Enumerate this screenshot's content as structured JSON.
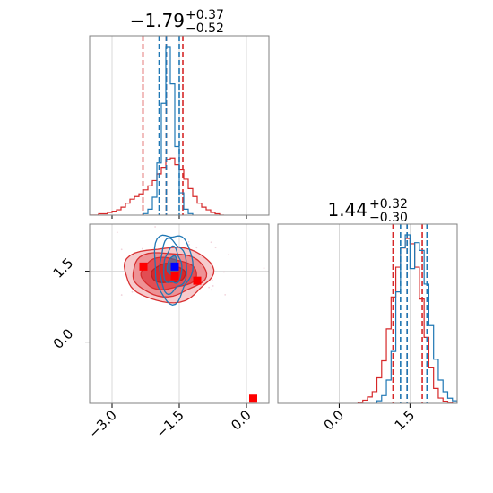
{
  "chart_data": {
    "type": "corner",
    "parameters": [
      {
        "title": {
          "value": "−1.79",
          "upper": "+0.37",
          "lower": "−0.52"
        },
        "range": [
          -3.5,
          0.5
        ],
        "ticks": [
          {
            "value": -3.0,
            "label": "−3.0"
          },
          {
            "value": -1.5,
            "label": "−1.5"
          },
          {
            "value": 0.0,
            "label": "0.0"
          }
        ]
      },
      {
        "title": {
          "value": "1.44",
          "upper": "+0.32",
          "lower": "−0.30"
        },
        "range": [
          -1.3,
          2.5
        ],
        "ticks": [
          {
            "value": 0.0,
            "label": "0.0"
          },
          {
            "value": 1.5,
            "label": "1.5"
          }
        ]
      }
    ],
    "y_ticks_2d": [
      {
        "value": 0.0,
        "label": "0.0"
      },
      {
        "value": 1.5,
        "label": "1.5"
      }
    ],
    "series": [
      {
        "name": "",
        "color": "#d62728",
        "x_hist": {
          "bin_edges": [
            -3.5,
            -3.4,
            -3.3,
            -3.2,
            -3.1,
            -3.0,
            -2.9,
            -2.8,
            -2.7,
            -2.6,
            -2.5,
            -2.4,
            -2.3,
            -2.2,
            -2.1,
            -2.0,
            -1.9,
            -1.8,
            -1.7,
            -1.6,
            -1.5,
            -1.4,
            -1.3,
            -1.2,
            -1.1,
            -1.0,
            -0.9,
            -0.8,
            -0.7,
            -0.6,
            -0.5
          ],
          "counts": [
            0,
            0,
            1,
            1,
            2,
            3,
            4,
            6,
            9,
            12,
            14,
            16,
            19,
            22,
            26,
            31,
            36,
            42,
            43,
            38,
            34,
            27,
            20,
            14,
            9,
            6,
            4,
            2,
            1,
            0
          ]
        },
        "y_hist": {
          "bin_edges": [
            0.4,
            0.5,
            0.6,
            0.7,
            0.8,
            0.9,
            1.0,
            1.1,
            1.2,
            1.3,
            1.4,
            1.5,
            1.6,
            1.7,
            1.8,
            1.9,
            2.0,
            2.1,
            2.2,
            2.3,
            2.4
          ],
          "counts": [
            1,
            3,
            6,
            11,
            24,
            40,
            70,
            100,
            128,
            146,
            155,
            150,
            128,
            98,
            62,
            34,
            14,
            5,
            2,
            1
          ]
        },
        "x_quantiles": [
          -2.31,
          -1.79,
          -1.42
        ],
        "y_quantiles": [
          1.14,
          1.44,
          1.76
        ],
        "contour_center": [
          -1.75,
          1.45
        ],
        "markers": [
          [
            -2.3,
            1.6
          ],
          [
            -1.6,
            1.4
          ],
          [
            -1.1,
            1.3
          ],
          [
            0.15,
            -1.2
          ]
        ]
      },
      {
        "name": "",
        "color": "#1f77b4",
        "x_hist": {
          "bin_edges": [
            -2.3,
            -2.2,
            -2.1,
            -2.0,
            -1.9,
            -1.8,
            -1.7,
            -1.6,
            -1.5,
            -1.4,
            -1.3,
            -1.2
          ],
          "counts": [
            1,
            4,
            12,
            35,
            75,
            113,
            88,
            46,
            15,
            4,
            1
          ]
        },
        "y_hist": {
          "bin_edges": [
            0.8,
            0.9,
            1.0,
            1.1,
            1.2,
            1.3,
            1.4,
            1.5,
            1.6,
            1.7,
            1.8,
            1.9,
            2.0,
            2.1,
            2.2,
            2.3,
            2.4,
            2.5
          ],
          "counts": [
            2,
            6,
            18,
            40,
            86,
            120,
            130,
            104,
            124,
            118,
            92,
            60,
            34,
            18,
            9,
            4,
            2
          ]
        },
        "x_quantiles": [
          -1.95,
          -1.79,
          -1.5
        ],
        "y_quantiles": [
          1.3,
          1.44,
          1.86
        ],
        "contour_center": [
          -1.65,
          1.6
        ],
        "markers": [
          [
            -1.6,
            1.6
          ]
        ]
      }
    ],
    "grid": true
  }
}
